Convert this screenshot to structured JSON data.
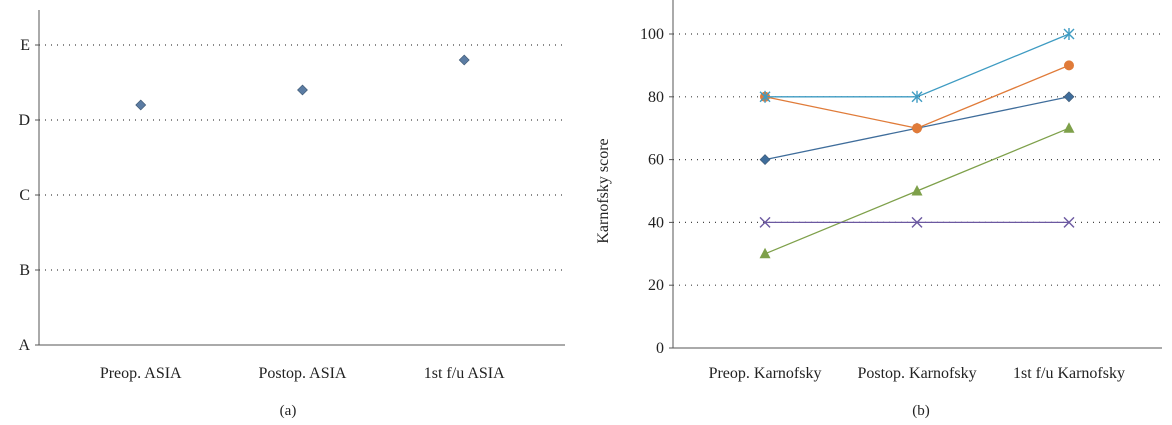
{
  "chart_data": [
    {
      "type": "scatter",
      "panel_label": "(a)",
      "categories": [
        "Preop. ASIA",
        "Postop. ASIA",
        "1st f/u ASIA"
      ],
      "y_tick_labels": [
        "A",
        "B",
        "C",
        "D",
        "E"
      ],
      "ylim": [
        0,
        4
      ],
      "grid": "horizontal dotted",
      "series": [
        {
          "values": [
            3.2,
            3.4,
            3.8
          ],
          "color": "#5B7CA3",
          "marker": "diamond"
        }
      ]
    },
    {
      "type": "line",
      "panel_label": "(b)",
      "categories": [
        "Preop. Karnofsky",
        "Postop. Karnofsky",
        "1st f/u Karnofsky"
      ],
      "ylabel": "Karnofsky score",
      "ylim": [
        0,
        100
      ],
      "yticks": [
        0,
        20,
        40,
        60,
        80,
        100
      ],
      "grid": "horizontal dotted",
      "series": [
        {
          "values": [
            60,
            70,
            80
          ],
          "color": "#3F6D9B",
          "marker": "diamond"
        },
        {
          "values": [
            80,
            70,
            90
          ],
          "color": "#E07B39",
          "marker": "circle"
        },
        {
          "values": [
            30,
            50,
            70
          ],
          "color": "#7EA04A",
          "marker": "triangle"
        },
        {
          "values": [
            40,
            40,
            40
          ],
          "color": "#6B58A0",
          "marker": "x"
        },
        {
          "values": [
            80,
            80,
            100
          ],
          "color": "#3E9BC2",
          "marker": "star"
        }
      ]
    }
  ]
}
